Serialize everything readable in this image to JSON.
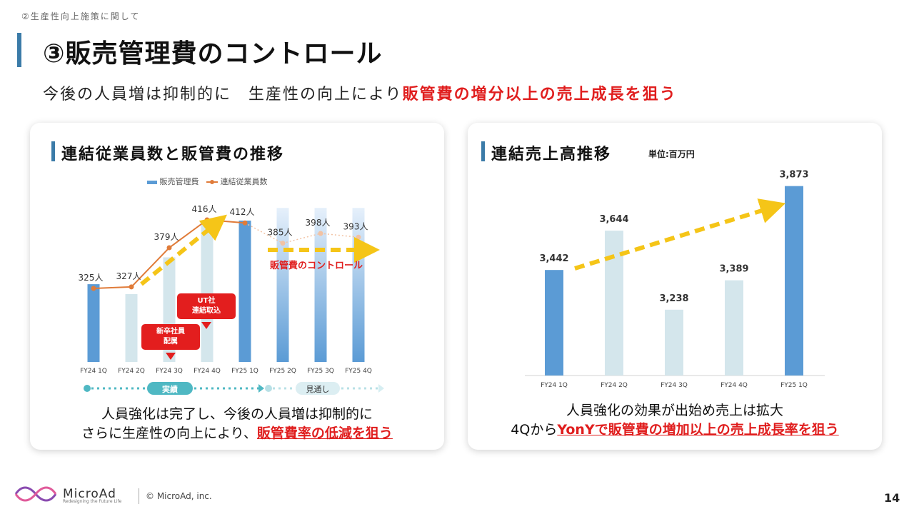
{
  "header": {
    "section": "②生産性向上施策に関して",
    "title": "③販売管理費のコントロール",
    "subtitle_plain": "今後の人員増は抑制的に　生産性の向上により",
    "subtitle_red": "販管費の増分以上の売上成長を狙う"
  },
  "left_panel": {
    "title": "連結従業員数と販管費の推移",
    "legend": {
      "bar": "販売管理費",
      "line": "連結従業員数"
    },
    "annotation_arrow_right": "販管費のコントロール",
    "callout_ut": "UT社\n連結取込",
    "callout_new": "新卒社員\n配属",
    "timeline_actual": "実績",
    "timeline_forecast": "見通し",
    "caption_line1": "人員強化は完了し、今後の人員増は抑制的に",
    "caption_line2_plain": "さらに生産性の向上により、",
    "caption_line2_red": "販管費率の低減を狙う"
  },
  "right_panel": {
    "title": "連結売上高推移",
    "unit": "単位:百万円",
    "caption_line1": "人員強化の効果が出始め売上は拡大",
    "caption_line2_plain": "4Qから",
    "caption_line2_red": "YonYで販管費の増加以上の売上成長率を狙う"
  },
  "footer": {
    "brand": "MicroAd",
    "tagline": "Redesigning the Future Life",
    "copyright": "© MicroAd, inc.",
    "page_number": "14"
  },
  "colors": {
    "accent_blue": "#5b9bd5",
    "light_bar": "#d4e6ec",
    "orange_line": "#e07b39",
    "yellow_arrow": "#f5c518",
    "red": "#e01e1e",
    "teal": "#4fb8c3"
  },
  "chart_data": [
    {
      "type": "bar",
      "title": "連結従業員数と販管費の推移",
      "categories": [
        "FY24 1Q",
        "FY24 2Q",
        "FY24 3Q",
        "FY24 4Q",
        "FY25 1Q",
        "FY25 2Q",
        "FY25 3Q",
        "FY25 4Q"
      ],
      "series": [
        {
          "name": "販売管理費",
          "kind": "bar",
          "relative_values": [
            0.55,
            0.48,
            0.74,
            1.0,
            1.0,
            1.09,
            1.09,
            1.09
          ],
          "actual_until_index": 4
        },
        {
          "name": "連結従業員数",
          "kind": "line",
          "values": [
            325,
            327,
            379,
            416,
            412,
            385,
            398,
            393
          ],
          "labels": [
            "325人",
            "327人",
            "379人",
            "416人",
            "412人",
            "385人",
            "398人",
            "393人"
          ]
        }
      ],
      "legend_position": "top"
    },
    {
      "type": "bar",
      "title": "連結売上高推移",
      "categories": [
        "FY24 1Q",
        "FY24 2Q",
        "FY24 3Q",
        "FY24 4Q",
        "FY25 1Q"
      ],
      "values": [
        3442,
        3644,
        3238,
        3389,
        3873
      ],
      "labels": [
        "3,442",
        "3,644",
        "3,238",
        "3,389",
        "3,873"
      ],
      "highlight": [
        true,
        false,
        false,
        false,
        true
      ],
      "ylim": [
        2900,
        4000
      ]
    }
  ]
}
